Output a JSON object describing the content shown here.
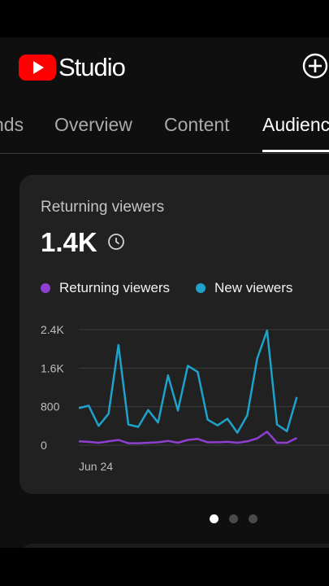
{
  "app": {
    "logo_text": "Studio"
  },
  "tabs": [
    {
      "label": "nds"
    },
    {
      "label": "Overview"
    },
    {
      "label": "Content"
    },
    {
      "label": "Audienc"
    }
  ],
  "card": {
    "title": "Returning viewers",
    "value": "1.4K"
  },
  "colors": {
    "returning": "#8e3fd1",
    "new": "#1fa2c9",
    "brand_red": "#ff0000"
  },
  "chart_data": {
    "type": "line",
    "title": "",
    "x_start_label": "Jun 24",
    "y_ticks": [
      "2.4K",
      "1.6K",
      "800",
      "0"
    ],
    "ylim": [
      0,
      2400
    ],
    "grid": true,
    "legend_position": "top",
    "series": [
      {
        "name": "Returning viewers",
        "color": "#8e3fd1",
        "values": [
          80,
          70,
          50,
          80,
          110,
          40,
          40,
          50,
          60,
          90,
          50,
          110,
          130,
          60,
          60,
          70,
          50,
          80,
          140,
          280,
          50,
          50,
          150
        ]
      },
      {
        "name": "New viewers",
        "color": "#1fa2c9",
        "values": [
          770,
          820,
          400,
          650,
          2080,
          430,
          380,
          730,
          470,
          1450,
          720,
          1650,
          1520,
          530,
          410,
          550,
          260,
          620,
          1800,
          2380,
          430,
          290,
          1000
        ]
      }
    ]
  },
  "pager": {
    "count": 3,
    "active": 0
  }
}
